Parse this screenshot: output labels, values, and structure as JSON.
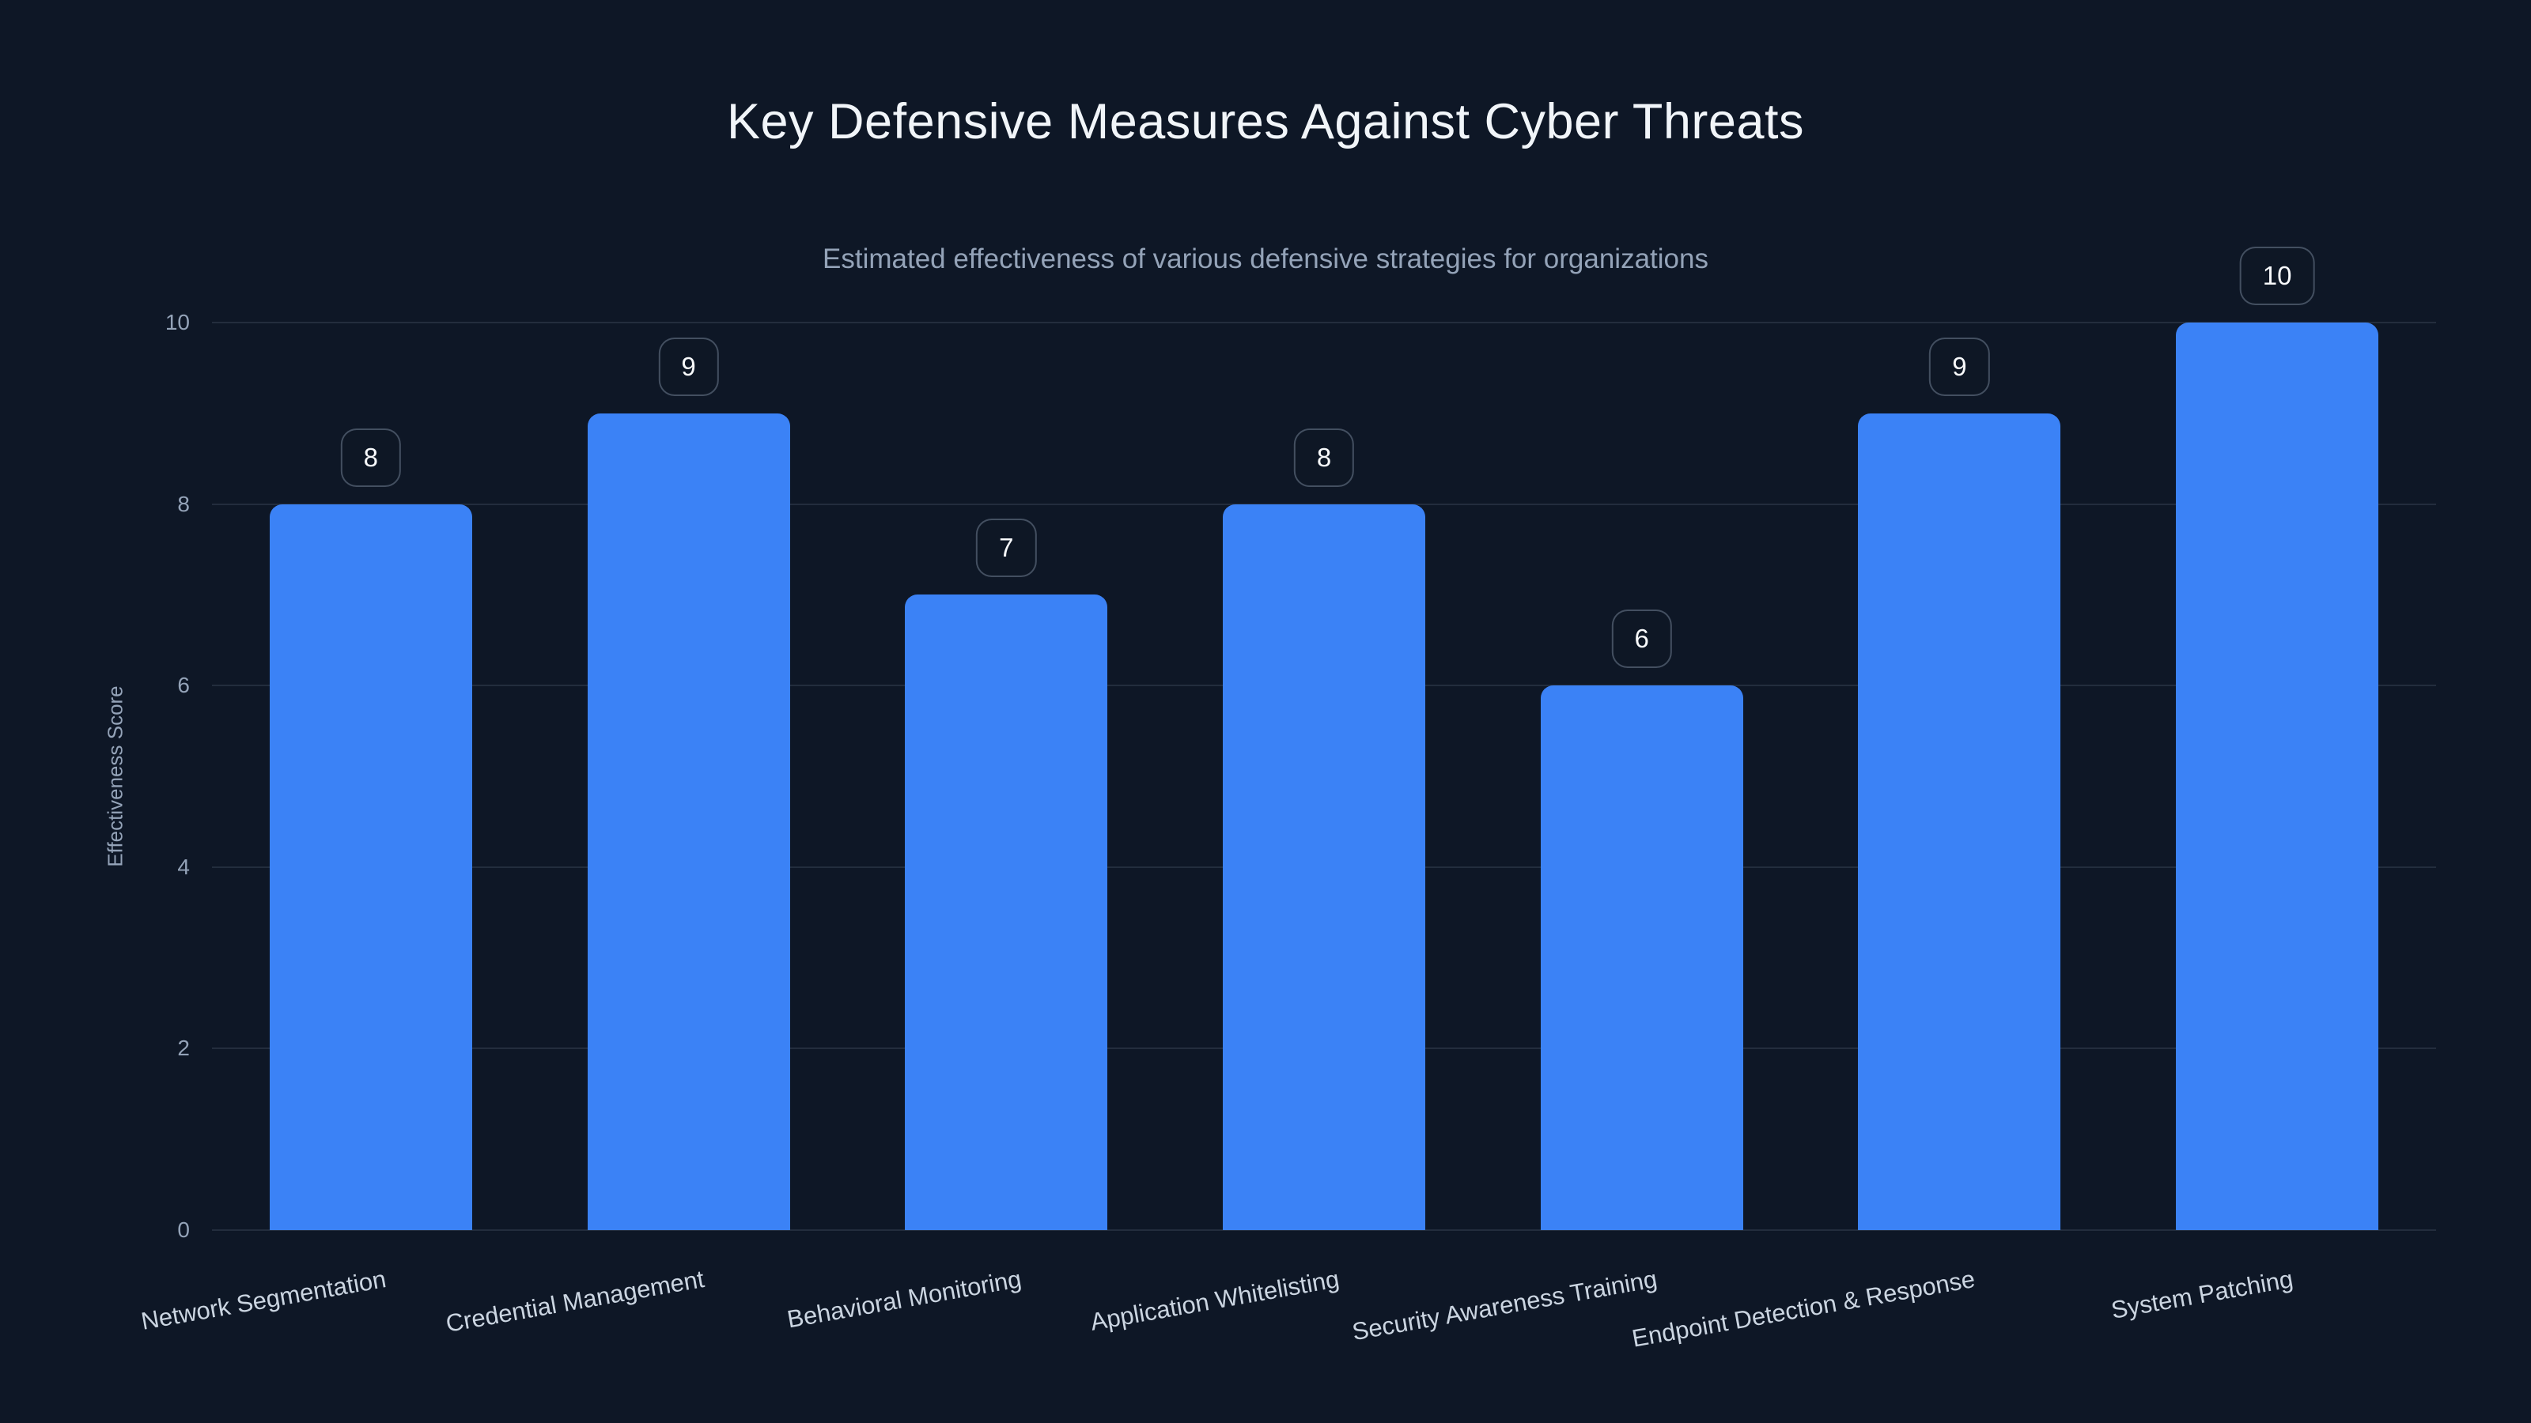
{
  "page": {
    "background": "#0e1726"
  },
  "chart_data": {
    "type": "bar",
    "title": "Key Defensive Measures Against Cyber Threats",
    "subtitle": "Estimated effectiveness of various defensive strategies for organizations",
    "ylabel": "Effectiveness Score",
    "xlabel": "",
    "categories": [
      "Network Segmentation",
      "Credential Management",
      "Behavioral Monitoring",
      "Application Whitelisting",
      "Security Awareness Training",
      "Endpoint Detection & Response",
      "System Patching"
    ],
    "values": [
      8,
      9,
      7,
      8,
      6,
      9,
      10
    ],
    "ylim": [
      0,
      10
    ],
    "yticks": [
      0,
      2,
      4,
      6,
      8,
      10
    ],
    "grid": "horizontal",
    "legend": "none",
    "x_tick_rotation_deg": -10,
    "value_labels": "boxed badges above bars"
  },
  "colors": {
    "bar": "#3b82f6",
    "background": "#0e1726",
    "title_text": "#f1f5f9",
    "subtitle_text": "#94a3b8",
    "tick_text": "#94a3b8",
    "x_label_text": "#cbd5e1",
    "gridline": "rgba(148,163,184,0.16)",
    "badge_border": "rgba(148,163,184,0.40)",
    "badge_text": "#f8fafc"
  }
}
